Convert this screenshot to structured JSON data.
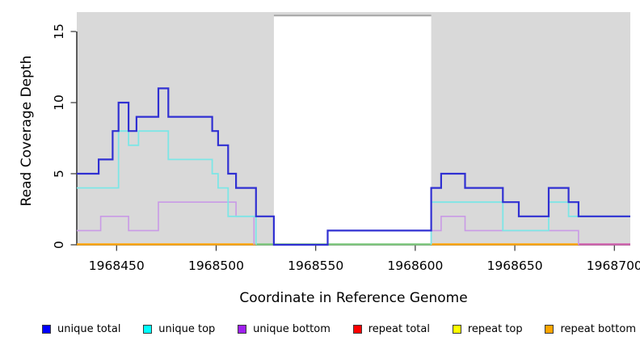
{
  "figure": {
    "x_axis_title": "Coordinate in Reference Genome",
    "y_axis_title": "Read Coverage Depth"
  },
  "legend": {
    "items": [
      {
        "label": "unique total",
        "color": "#0000ff"
      },
      {
        "label": "unique top",
        "color": "#00ffff"
      },
      {
        "label": "unique bottom",
        "color": "#a020f0"
      },
      {
        "label": "repeat total",
        "color": "#ff0000"
      },
      {
        "label": "repeat top",
        "color": "#ffff00"
      },
      {
        "label": "repeat bottom",
        "color": "#ffa500"
      }
    ]
  },
  "chart_data": {
    "type": "line",
    "subtype": "step-coverage",
    "title": "",
    "xlabel": "Coordinate in Reference Genome",
    "ylabel": "Read Coverage Depth",
    "xlim": [
      1968430,
      1968708
    ],
    "ylim": [
      0,
      16.4
    ],
    "x_ticks": [
      1968450,
      1968500,
      1968550,
      1968600,
      1968650,
      1968700
    ],
    "y_ticks": [
      0,
      5,
      10,
      15
    ],
    "grid": false,
    "legend_position": "bottom",
    "background_shaded_color": "#d9d9d9",
    "shaded_regions": [
      [
        1968430,
        1968529
      ],
      [
        1968608,
        1968708
      ]
    ],
    "gap_region": {
      "from": 1968529,
      "to": 1968608,
      "color": "#ffffff",
      "top_border_color": "#a6a6a6"
    },
    "all_repeat_series_depth": 0,
    "zero_line_segments": [
      {
        "from": 1968430,
        "to": 1968520,
        "color": "#ffa500"
      },
      {
        "from": 1968520,
        "to": 1968608,
        "color": "#7cc87c"
      },
      {
        "from": 1968608,
        "to": 1968682,
        "color": "#ffa500"
      },
      {
        "from": 1968682,
        "to": 1968708,
        "color": "#d05fae"
      }
    ],
    "series": [
      {
        "name": "unique bottom",
        "key": "unique_bottom",
        "line_color": "#c99ae6",
        "width": 1.6,
        "segments": [
          {
            "points": [
              [
                1968430,
                1
              ],
              [
                1968442,
                2
              ],
              [
                1968456,
                1
              ],
              [
                1968471,
                3
              ],
              [
                1968510,
                2
              ],
              [
                1968519,
                0
              ]
            ],
            "end": 1968519
          },
          {
            "points": [
              [
                1968608,
                0
              ],
              [
                1968608,
                1
              ],
              [
                1968613,
                2
              ],
              [
                1968625,
                1
              ],
              [
                1968682,
                0
              ]
            ],
            "end": 1968682
          }
        ]
      },
      {
        "name": "unique top",
        "key": "unique_top",
        "line_color": "#7de6e6",
        "width": 1.8,
        "segments": [
          {
            "points": [
              [
                1968430,
                4
              ],
              [
                1968451,
                8
              ],
              [
                1968456,
                7
              ],
              [
                1968461,
                8
              ],
              [
                1968476,
                6
              ],
              [
                1968498,
                5
              ],
              [
                1968501,
                4
              ],
              [
                1968506,
                2
              ],
              [
                1968520,
                0
              ]
            ],
            "end": 1968520
          },
          {
            "points": [
              [
                1968608,
                0
              ],
              [
                1968608,
                3
              ],
              [
                1968644,
                1
              ],
              [
                1968667,
                3
              ],
              [
                1968677,
                2
              ]
            ],
            "end": 1968708
          }
        ]
      },
      {
        "name": "unique total",
        "key": "unique_total",
        "line_color": "#3030d2",
        "width": 2.2,
        "segments": [
          {
            "points": [
              [
                1968430,
                5
              ],
              [
                1968441,
                6
              ],
              [
                1968448,
                8
              ],
              [
                1968451,
                10
              ],
              [
                1968456,
                8
              ],
              [
                1968460,
                9
              ],
              [
                1968471,
                11
              ],
              [
                1968476,
                9
              ],
              [
                1968498,
                8
              ],
              [
                1968501,
                7
              ],
              [
                1968506,
                5
              ],
              [
                1968510,
                4
              ],
              [
                1968520,
                2
              ],
              [
                1968529,
                0
              ],
              [
                1968556,
                1
              ],
              [
                1968608,
                4
              ],
              [
                1968613,
                5
              ],
              [
                1968625,
                4
              ],
              [
                1968644,
                3
              ],
              [
                1968652,
                2
              ],
              [
                1968667,
                4
              ],
              [
                1968677,
                3
              ],
              [
                1968682,
                2
              ]
            ],
            "end": 1968708
          }
        ]
      },
      {
        "name": "repeat total",
        "key": "repeat_total",
        "line_color": "#ff0000",
        "width": 2,
        "segments": []
      },
      {
        "name": "repeat top",
        "key": "repeat_top",
        "line_color": "#ffff00",
        "width": 2,
        "segments": []
      },
      {
        "name": "repeat bottom",
        "key": "repeat_bottom",
        "line_color": "#ffa500",
        "width": 2,
        "segments": []
      }
    ]
  }
}
